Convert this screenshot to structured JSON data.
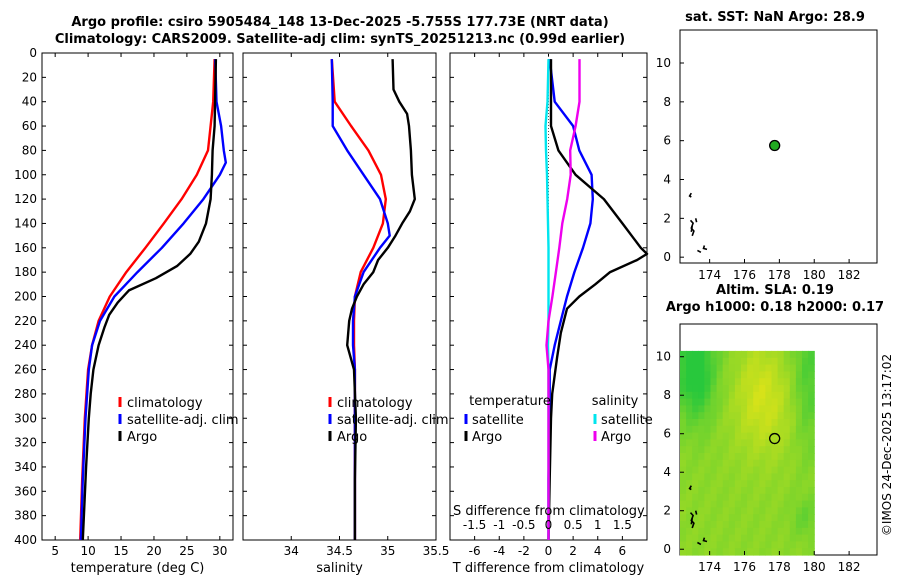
{
  "header": {
    "line1": "Argo profile: csiro 5905484_148 13-Dec-2025 -5.755S 177.73E (NRT data)",
    "line2": "Climatology: CARS2009. Satellite-adj clim: synTS_20251213.nc (0.99d earlier)"
  },
  "map1_title": "sat. SST: NaN Argo: 28.9",
  "map2_title": [
    "Altim. SLA: 0.19",
    "Argo h1000: 0.18 h2000: 0.17"
  ],
  "timestamp": "©IMOS 24-Dec-2025 13:17:02",
  "colors": {
    "climatology": "#ff0000",
    "satellite": "#0000ff",
    "argo": "#000000",
    "sat_salinity": "#00e5ee",
    "clim_salinity": "#ee00ee",
    "float_marker": "#22aa22"
  },
  "chart_data": [
    {
      "type": "line",
      "name": "temperature",
      "xlabel": "temperature (deg C)",
      "ylabel": "",
      "xlim": [
        3,
        32
      ],
      "ylim": [
        0,
        400
      ],
      "xticks": [
        5,
        10,
        15,
        20,
        25,
        30
      ],
      "yticks": [
        0,
        20,
        40,
        60,
        80,
        100,
        120,
        140,
        160,
        180,
        200,
        220,
        240,
        260,
        280,
        300,
        320,
        340,
        360,
        380,
        400
      ],
      "legend": {
        "position": "bottom-right",
        "entries": [
          "climatology",
          "satellite-adj. clim",
          "Argo"
        ]
      },
      "series": [
        {
          "name": "climatology",
          "color": "#ff0000",
          "depth": [
            5,
            40,
            80,
            100,
            120,
            140,
            160,
            180,
            200,
            220,
            240,
            260,
            300,
            350,
            400
          ],
          "values": [
            29.2,
            29.0,
            28.2,
            26.5,
            24.2,
            21.5,
            18.7,
            15.8,
            13.3,
            11.6,
            10.6,
            10.0,
            9.5,
            9.1,
            8.8
          ]
        },
        {
          "name": "satellite-adj. clim",
          "color": "#0000ff",
          "depth": [
            5,
            40,
            60,
            80,
            90,
            100,
            120,
            140,
            160,
            180,
            200,
            220,
            240,
            260,
            300,
            350,
            400
          ],
          "values": [
            29.3,
            29.5,
            30.2,
            30.6,
            30.9,
            30.0,
            27.5,
            24.5,
            21.2,
            17.5,
            14.0,
            11.8,
            10.6,
            10.1,
            9.6,
            9.2,
            8.9
          ]
        },
        {
          "name": "Argo",
          "color": "#000000",
          "depth": [
            5,
            60,
            80,
            100,
            120,
            140,
            155,
            165,
            175,
            185,
            195,
            205,
            215,
            225,
            240,
            260,
            280,
            300,
            340,
            400
          ],
          "values": [
            29.4,
            29.2,
            28.9,
            28.8,
            28.6,
            27.9,
            26.8,
            25.5,
            23.5,
            20.3,
            16.2,
            14.5,
            13.2,
            12.5,
            11.6,
            10.8,
            10.4,
            10.1,
            9.7,
            9.2
          ]
        }
      ]
    },
    {
      "type": "line",
      "name": "salinity",
      "xlabel": "salinity",
      "ylabel": "",
      "xlim": [
        33.5,
        35.5
      ],
      "ylim": [
        0,
        400
      ],
      "xticks": [
        34,
        34.5,
        35,
        35.5
      ],
      "legend": {
        "position": "bottom-right",
        "entries": [
          "climatology",
          "satellite-adj. clim",
          "Argo"
        ]
      },
      "series": [
        {
          "name": "climatology",
          "color": "#ff0000",
          "depth": [
            5,
            40,
            60,
            80,
            100,
            120,
            140,
            160,
            180,
            200,
            220,
            240,
            260,
            300,
            350,
            400
          ],
          "values": [
            34.42,
            34.45,
            34.62,
            34.8,
            34.93,
            34.98,
            34.95,
            34.85,
            34.72,
            34.66,
            34.65,
            34.65,
            34.66,
            34.66,
            34.66,
            34.66
          ]
        },
        {
          "name": "satellite-adj. clim",
          "color": "#0000ff",
          "depth": [
            5,
            40,
            60,
            80,
            100,
            120,
            140,
            150,
            160,
            180,
            200,
            220,
            240,
            260,
            300,
            350,
            400
          ],
          "values": [
            34.42,
            34.43,
            34.43,
            34.58,
            34.75,
            34.92,
            35.0,
            35.02,
            34.92,
            34.75,
            34.66,
            34.64,
            34.64,
            34.66,
            34.66,
            34.66,
            34.66
          ]
        },
        {
          "name": "Argo",
          "color": "#000000",
          "depth": [
            5,
            30,
            40,
            50,
            60,
            80,
            100,
            120,
            130,
            140,
            150,
            160,
            170,
            180,
            190,
            200,
            210,
            220,
            240,
            260,
            300,
            350,
            400
          ],
          "values": [
            35.05,
            35.06,
            35.12,
            35.2,
            35.22,
            35.24,
            35.25,
            35.28,
            35.23,
            35.15,
            35.08,
            35.0,
            34.9,
            34.85,
            34.75,
            34.68,
            34.63,
            34.6,
            34.58,
            34.65,
            34.67,
            34.66,
            34.66
          ]
        }
      ]
    },
    {
      "type": "line",
      "name": "difference",
      "xlabel": "T difference from climatology",
      "x2label": "S difference from climatology",
      "xlim": [
        -8,
        8
      ],
      "ylim": [
        0,
        400
      ],
      "xticks": [
        -6,
        -4,
        -2,
        0,
        2,
        4,
        6
      ],
      "x2lim": [
        -2,
        2
      ],
      "x2ticks": [
        -1.5,
        -1,
        -0.5,
        0,
        0.5,
        1,
        1.5
      ],
      "legend": {
        "position": "bottom",
        "groups": [
          {
            "title": "temperature",
            "entries": [
              "satellite",
              "Argo"
            ]
          },
          {
            "title": "salinity",
            "entries": [
              "satellite",
              "Argo"
            ]
          }
        ]
      },
      "series": [
        {
          "name": "temperature satellite",
          "color": "#0000ff",
          "depth": [
            5,
            40,
            60,
            80,
            100,
            120,
            140,
            160,
            180,
            200,
            220,
            240,
            260,
            300,
            350,
            400
          ],
          "values": [
            0.1,
            0.5,
            2.0,
            2.5,
            3.5,
            3.6,
            3.4,
            2.8,
            2.1,
            1.5,
            1.0,
            0.5,
            0.1,
            0.1,
            0.0,
            0.0
          ]
        },
        {
          "name": "temperature Argo",
          "color": "#000000",
          "depth": [
            5,
            60,
            80,
            100,
            120,
            140,
            160,
            165,
            170,
            180,
            190,
            200,
            210,
            230,
            250,
            280,
            300,
            350,
            400
          ],
          "values": [
            0.2,
            0.2,
            0.8,
            2.2,
            4.5,
            6.0,
            7.5,
            8.0,
            7.2,
            5.0,
            3.8,
            2.5,
            1.5,
            1.0,
            0.7,
            0.3,
            0.2,
            0.1,
            0.0
          ]
        },
        {
          "name": "salinity satellite",
          "color": "#00e5ee",
          "depth": [
            5,
            40,
            60,
            80,
            100,
            120,
            140,
            160,
            180,
            200,
            220,
            240,
            260,
            300,
            400
          ],
          "values": [
            0.0,
            -0.02,
            -0.06,
            -0.05,
            -0.03,
            -0.02,
            -0.01,
            0.0,
            0.0,
            0.0,
            0.0,
            -0.01,
            0.0,
            0.0,
            0.0
          ]
        },
        {
          "name": "salinity Argo",
          "color": "#ee00ee",
          "depth": [
            5,
            40,
            60,
            80,
            100,
            120,
            140,
            160,
            180,
            200,
            220,
            240,
            260,
            300,
            400
          ],
          "values": [
            0.63,
            0.63,
            0.55,
            0.44,
            0.45,
            0.38,
            0.28,
            0.22,
            0.15,
            0.08,
            0.0,
            -0.04,
            0.0,
            0.0,
            0.0
          ]
        }
      ]
    },
    {
      "type": "scatter",
      "name": "sst_map",
      "title": "sat. SST: NaN Argo: 28.9",
      "xlim": [
        172.3,
        183.6
      ],
      "ylim": [
        -0.3,
        11.7
      ],
      "xticks": [
        174,
        176,
        178,
        180,
        182
      ],
      "yticks": [
        0,
        2,
        4,
        6,
        8,
        10
      ],
      "points": [
        {
          "x": 177.73,
          "y": 5.75,
          "label": "Argo float"
        }
      ]
    },
    {
      "type": "heatmap",
      "name": "sla_map",
      "title": "Altim. SLA: 0.19 / Argo h1000: 0.18 h2000: 0.17",
      "xlim": [
        172.3,
        183.6
      ],
      "ylim": [
        -0.3,
        11.7
      ],
      "xticks": [
        174,
        176,
        178,
        180,
        182
      ],
      "yticks": [
        0,
        2,
        4,
        6,
        8,
        10
      ],
      "data_extent": {
        "x": [
          172.3,
          180
        ],
        "y": [
          -0.3,
          10.3
        ]
      },
      "points": [
        {
          "x": 177.73,
          "y": 5.75,
          "label": "Argo float"
        }
      ]
    }
  ]
}
